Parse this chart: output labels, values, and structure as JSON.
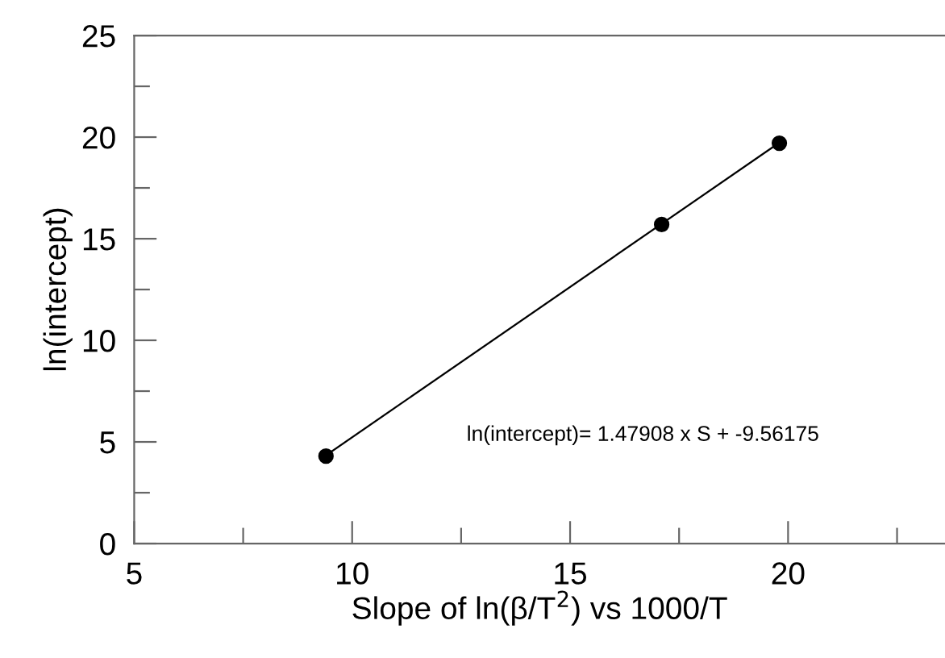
{
  "chart_data": {
    "type": "scatter",
    "xlabel": "Slope of ln(β/T$^{2}$) vs 1000/T",
    "ylabel": "ln(intercept)",
    "annotations": [
      "ln(intercept)= 1.47908 x S + -9.56175"
    ],
    "series": [
      {
        "color": "#000000",
        "x": [
          9.4,
          17.1,
          19.8
        ],
        "values": [
          4.3,
          15.7,
          19.7
        ],
        "marker": "circle"
      },
      {
        "type": "line",
        "color": "#000000",
        "x": [
          9.4,
          19.8
        ],
        "values": [
          4.34,
          19.73
        ],
        "marker": "none",
        "line_style": "solid"
      }
    ],
    "xlim": [
      5,
      23.6
    ],
    "ylim": [
      0,
      25
    ],
    "xticks": [
      5,
      {
        "value": 7.5,
        "label": null
      },
      10,
      {
        "value": 12.5,
        "label": null
      },
      15,
      {
        "value": 17.5,
        "label": null
      },
      20,
      {
        "value": 22.5,
        "label": null
      }
    ],
    "yticks": [
      0,
      {
        "value": 2.5,
        "label": null
      },
      5,
      {
        "value": 7.5,
        "label": null
      },
      10,
      {
        "value": 12.5,
        "label": null
      },
      15,
      {
        "value": 17.5,
        "label": null
      },
      20,
      {
        "value": 22.5,
        "label": null
      },
      25
    ],
    "grid": false,
    "legend": false
  }
}
